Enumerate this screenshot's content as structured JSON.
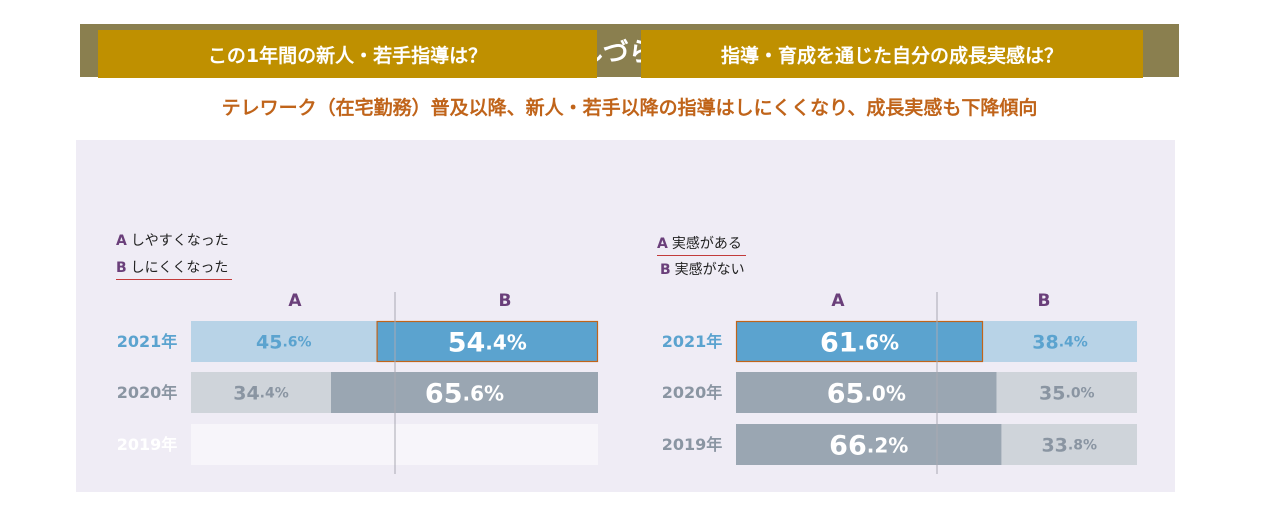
{
  "title": "指導のしづらさが増加",
  "subtitle": "テレワーク（在宅勤務）普及以降、新人・若手以降の指導はしにくくなり、成長実感も下降傾向",
  "colors": {
    "title_bg": "#8a7f4f",
    "panel_title_bg": "#bf9000",
    "panel_bg": "#efecf5",
    "subtitle": "#c0641a",
    "highlight_outline": "#c0641a"
  },
  "chart_data": [
    {
      "type": "bar",
      "stacked": "horizontal-100",
      "title": "この1年間の新人・若手指導は？",
      "legend": [
        {
          "key": "A",
          "label": "しやすくなった"
        },
        {
          "key": "B",
          "label": "しにくくなった"
        }
      ],
      "column_headers": [
        "A",
        "B"
      ],
      "categories": [
        "2021年",
        "2020年",
        "2019年"
      ],
      "series": [
        {
          "name": "A",
          "values": [
            45.6,
            34.4,
            null
          ]
        },
        {
          "name": "B",
          "values": [
            54.4,
            65.6,
            null
          ]
        }
      ],
      "xlim": [
        0,
        100
      ]
    },
    {
      "type": "bar",
      "stacked": "horizontal-100",
      "title": "指導・育成を通じた自分の成長実感は？",
      "legend": [
        {
          "key": "A",
          "label": "実感がある"
        },
        {
          "key": "B",
          "label": "実感がない"
        }
      ],
      "column_headers": [
        "A",
        "B"
      ],
      "categories": [
        "2021年",
        "2020年",
        "2019年"
      ],
      "series": [
        {
          "name": "A",
          "values": [
            61.6,
            65.0,
            66.2
          ]
        },
        {
          "name": "B",
          "values": [
            38.4,
            35.0,
            33.8
          ]
        }
      ],
      "xlim": [
        0,
        100
      ]
    }
  ]
}
